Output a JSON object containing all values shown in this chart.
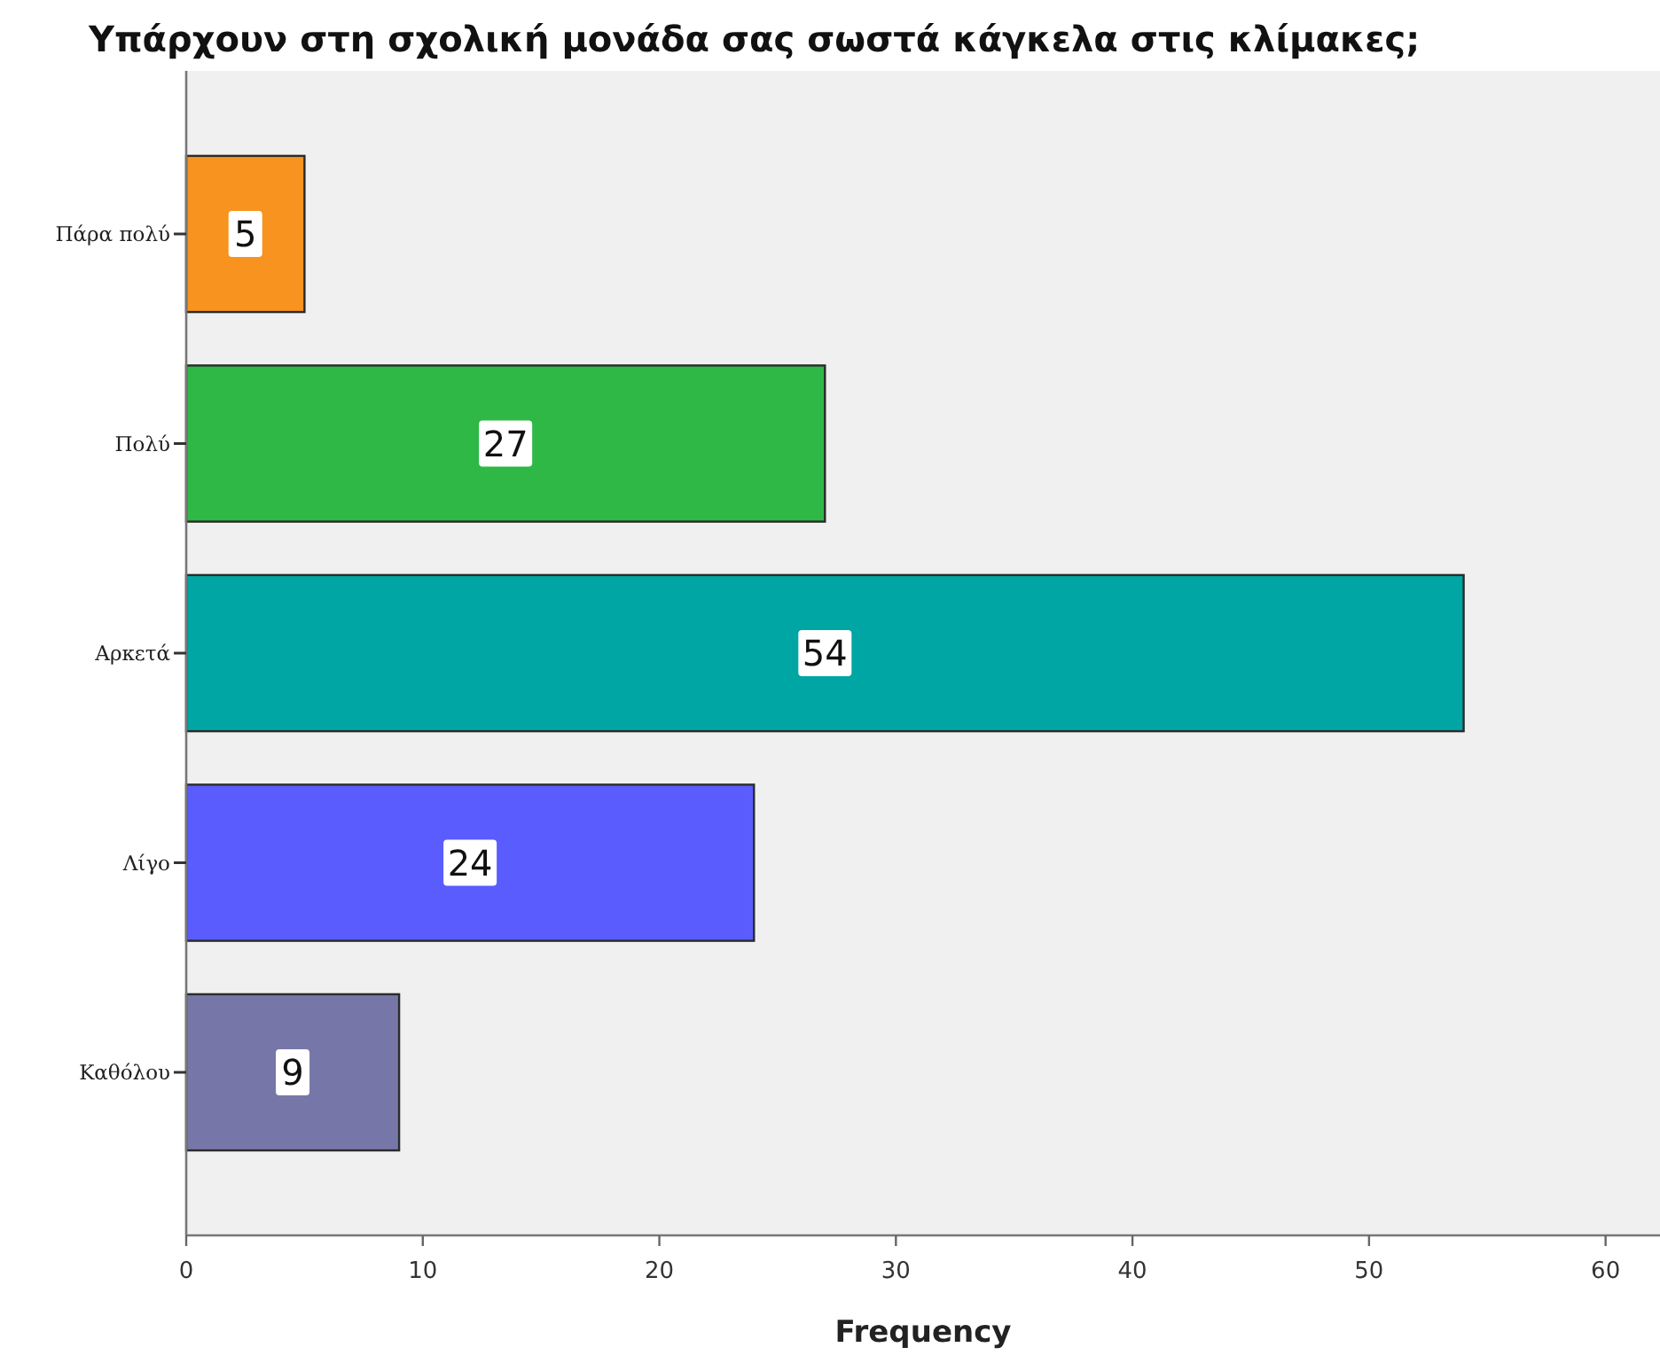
{
  "chart_data": {
    "type": "bar",
    "orientation": "horizontal",
    "title": "Υπάρχουν στη σχολική μονάδα σας σωστά κάγκελα στις κλίμακες;",
    "xlabel": "Frequency",
    "categories": [
      "Πάρα πολύ",
      "Πολύ",
      "Αρκετά",
      "Λίγο",
      "Καθόλου"
    ],
    "values": [
      5,
      27,
      54,
      24,
      9
    ],
    "colors": [
      "#f7931e",
      "#2fb846",
      "#00a6a4",
      "#5a5cfd",
      "#7677a8"
    ],
    "xlim": [
      0,
      62.3
    ],
    "xticks": [
      0,
      10,
      20,
      30,
      40,
      50,
      60
    ],
    "data_labels": true
  }
}
